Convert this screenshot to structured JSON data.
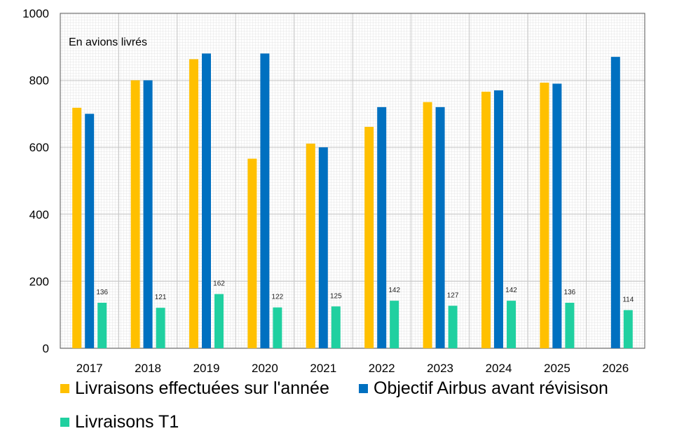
{
  "chart_data": {
    "type": "bar",
    "annotation": "En avions livrés",
    "categories": [
      "2017",
      "2018",
      "2019",
      "2020",
      "2021",
      "2022",
      "2023",
      "2024",
      "2025",
      "2026"
    ],
    "ylim": [
      0,
      1000
    ],
    "yticks": [
      0,
      200,
      400,
      600,
      800,
      1000
    ],
    "grid": true,
    "legend_position": "bottom",
    "series": [
      {
        "name": "Livraisons effectuées sur l'année",
        "color": "#FFC000",
        "values": [
          718,
          800,
          863,
          566,
          611,
          661,
          735,
          766,
          793,
          null
        ]
      },
      {
        "name": "Objectif Airbus avant révisison",
        "color": "#0070C0",
        "values": [
          700,
          800,
          880,
          880,
          600,
          720,
          720,
          770,
          790,
          870
        ]
      },
      {
        "name": "Livraisons T1",
        "color": "#20D0A0",
        "values": [
          136,
          121,
          162,
          122,
          125,
          142,
          127,
          142,
          136,
          114
        ],
        "data_labels": [
          "136",
          "121",
          "162",
          "122",
          "125",
          "142",
          "127",
          "142",
          "136",
          "114"
        ]
      }
    ]
  }
}
